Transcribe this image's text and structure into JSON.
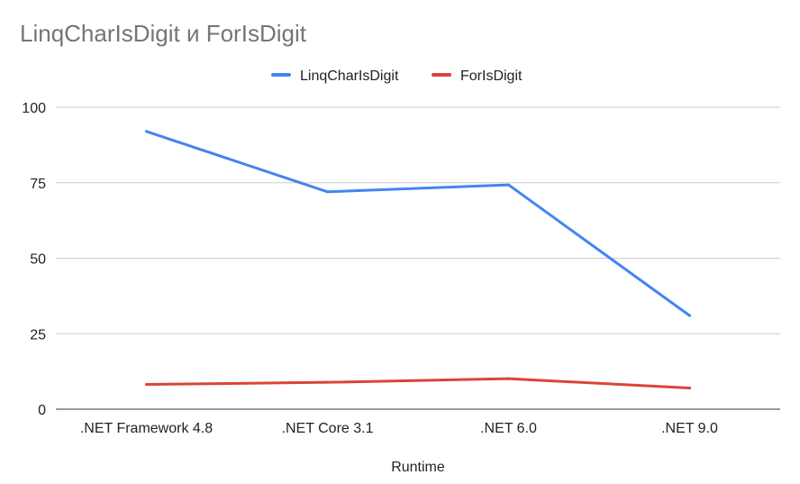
{
  "chart_data": {
    "type": "line",
    "title": "LinqCharIsDigit и ForIsDigit",
    "xlabel": "Runtime",
    "ylabel": "",
    "categories": [
      ".NET Framework 4.8",
      ".NET Core 3.1",
      ".NET 6.0",
      ".NET 9.0"
    ],
    "ylim": [
      0,
      100
    ],
    "yticks": [
      0,
      25,
      50,
      75,
      100
    ],
    "grid": true,
    "legend_position": "top",
    "series": [
      {
        "name": "LinqCharIsDigit",
        "color": "#4285f4",
        "values": [
          92,
          72,
          74.3,
          31
        ]
      },
      {
        "name": "ForIsDigit",
        "color": "#db4437",
        "values": [
          8.2,
          8.9,
          10.1,
          7
        ]
      }
    ]
  }
}
